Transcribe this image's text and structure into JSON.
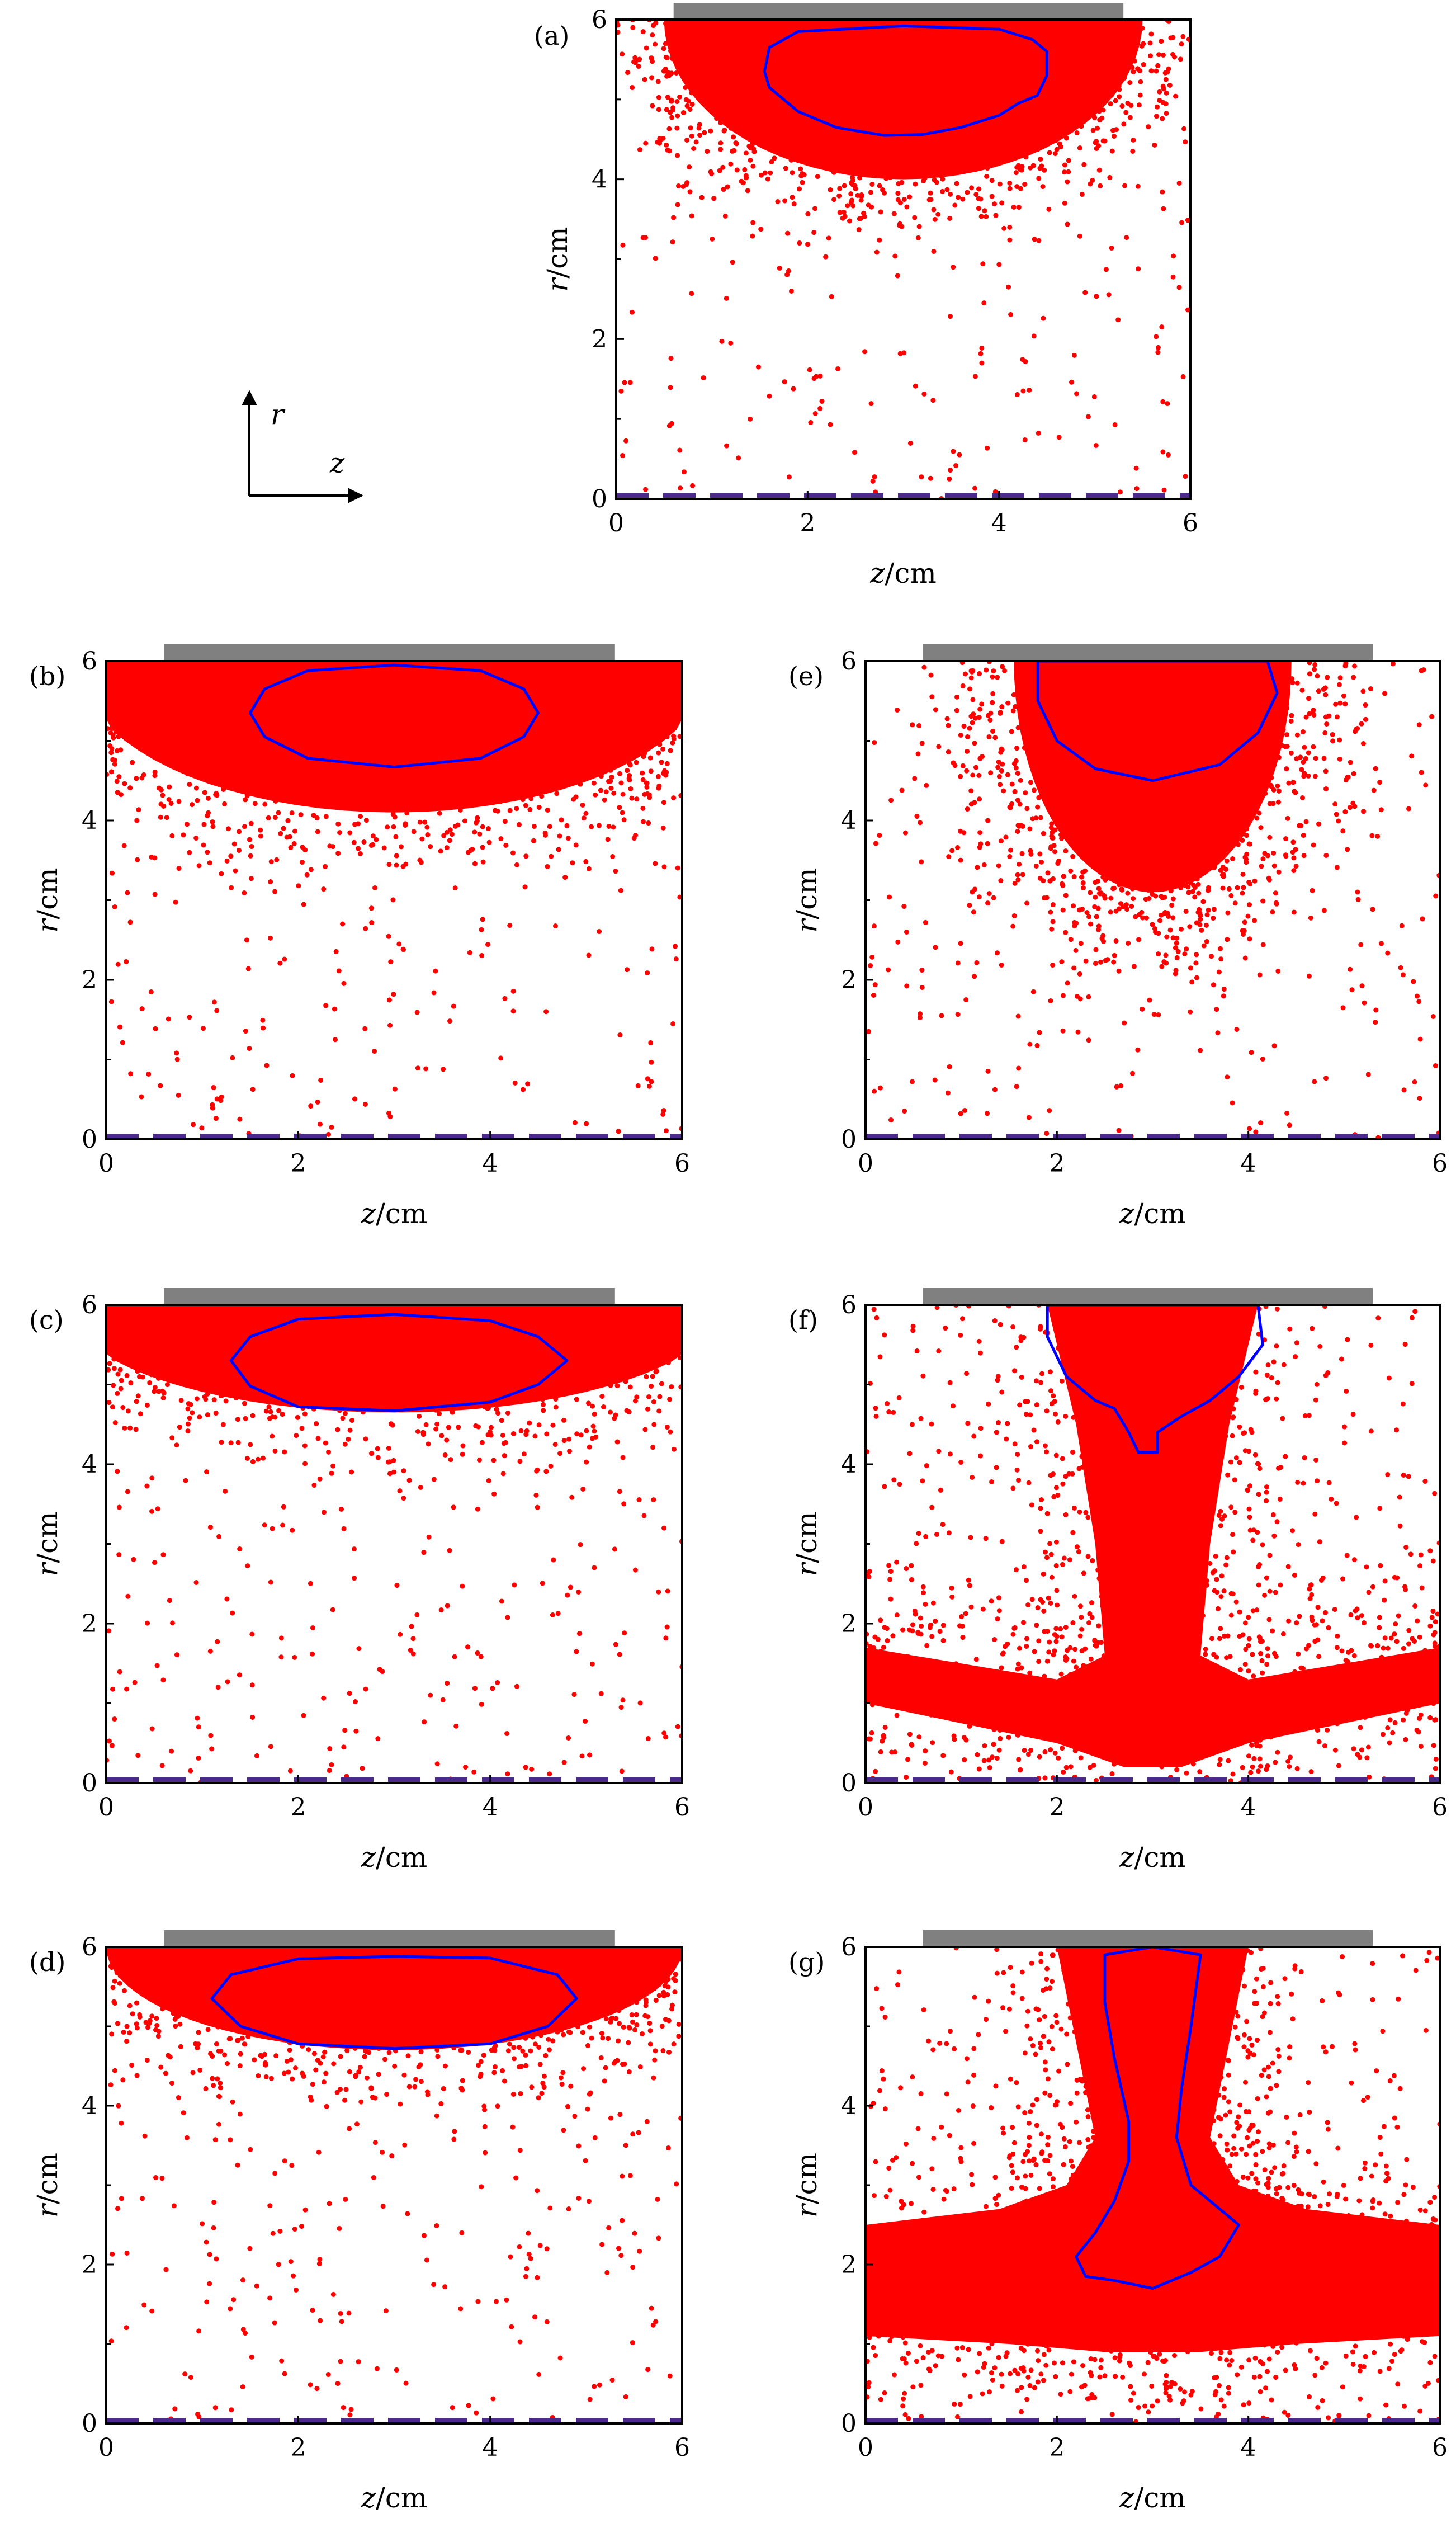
{
  "colors": {
    "points": "#ff0000",
    "contour": "#0000ff",
    "electrode": "#808080",
    "axis_line": "#4b2a8c",
    "frame": "#000000"
  },
  "coord_diagram": {
    "vertical_label": "r",
    "horizontal_label": "z"
  },
  "chart_data": [
    {
      "panel": "(a)",
      "type": "scatter",
      "xlabel_var": "z",
      "xlabel_unit": "/cm",
      "ylabel_var": "r",
      "ylabel_unit": "/cm",
      "xlim": [
        0,
        6
      ],
      "ylim": [
        0,
        6
      ],
      "xticks": [
        "0",
        "2",
        "4",
        "6"
      ],
      "yticks": [
        "0",
        "2",
        "4",
        "6"
      ],
      "electrode_z": [
        0.6,
        5.3
      ],
      "contour": [
        [
          1.55,
          5.35
        ],
        [
          1.6,
          5.65
        ],
        [
          1.9,
          5.85
        ],
        [
          3,
          5.92
        ],
        [
          4,
          5.88
        ],
        [
          4.35,
          5.75
        ],
        [
          4.5,
          5.6
        ],
        [
          4.5,
          5.3
        ],
        [
          4.4,
          5.05
        ],
        [
          4.2,
          4.95
        ],
        [
          4.0,
          4.8
        ],
        [
          3.6,
          4.65
        ],
        [
          3.2,
          4.56
        ],
        [
          2.8,
          4.55
        ],
        [
          2.3,
          4.65
        ],
        [
          1.9,
          4.85
        ],
        [
          1.6,
          5.15
        ]
      ]
    },
    {
      "panel": "(b)",
      "type": "scatter",
      "xlabel_var": "z",
      "xlabel_unit": "/cm",
      "ylabel_var": "r",
      "ylabel_unit": "/cm",
      "xlim": [
        0,
        6
      ],
      "ylim": [
        0,
        6
      ],
      "xticks": [
        "0",
        "2",
        "4",
        "6"
      ],
      "yticks": [
        "0",
        "2",
        "4",
        "6"
      ],
      "electrode_z": [
        0.6,
        5.3
      ],
      "contour": [
        [
          1.5,
          5.35
        ],
        [
          1.65,
          5.65
        ],
        [
          2.1,
          5.88
        ],
        [
          3,
          5.95
        ],
        [
          3.9,
          5.88
        ],
        [
          4.35,
          5.65
        ],
        [
          4.5,
          5.35
        ],
        [
          4.35,
          5.05
        ],
        [
          3.9,
          4.78
        ],
        [
          3,
          4.67
        ],
        [
          2.1,
          4.78
        ],
        [
          1.65,
          5.05
        ]
      ]
    },
    {
      "panel": "(c)",
      "type": "scatter",
      "xlabel_var": "z",
      "xlabel_unit": "/cm",
      "ylabel_var": "r",
      "ylabel_unit": "/cm",
      "xlim": [
        0,
        6
      ],
      "ylim": [
        0,
        6
      ],
      "xticks": [
        "0",
        "2",
        "4",
        "6"
      ],
      "yticks": [
        "0",
        "2",
        "4",
        "6"
      ],
      "electrode_z": [
        0.6,
        5.3
      ],
      "contour": [
        [
          1.3,
          5.3
        ],
        [
          1.5,
          5.6
        ],
        [
          2,
          5.82
        ],
        [
          3,
          5.88
        ],
        [
          4,
          5.8
        ],
        [
          4.5,
          5.6
        ],
        [
          4.8,
          5.3
        ],
        [
          4.5,
          5.0
        ],
        [
          4,
          4.78
        ],
        [
          3,
          4.67
        ],
        [
          2,
          4.72
        ],
        [
          1.5,
          4.98
        ]
      ]
    },
    {
      "panel": "(d)",
      "type": "scatter",
      "xlabel_var": "z",
      "xlabel_unit": "/cm",
      "ylabel_var": "r",
      "ylabel_unit": "/cm",
      "xlim": [
        0,
        6
      ],
      "ylim": [
        0,
        6
      ],
      "xticks": [
        "0",
        "2",
        "4",
        "6"
      ],
      "yticks": [
        "0",
        "2",
        "4",
        "6"
      ],
      "electrode_z": [
        0.6,
        5.3
      ],
      "contour": [
        [
          1.1,
          5.35
        ],
        [
          1.3,
          5.65
        ],
        [
          2,
          5.85
        ],
        [
          3,
          5.88
        ],
        [
          4,
          5.86
        ],
        [
          4.7,
          5.65
        ],
        [
          4.9,
          5.35
        ],
        [
          4.6,
          5.0
        ],
        [
          4,
          4.78
        ],
        [
          3,
          4.72
        ],
        [
          2,
          4.78
        ],
        [
          1.4,
          5.0
        ]
      ]
    },
    {
      "panel": "(e)",
      "type": "scatter",
      "xlabel_var": "z",
      "xlabel_unit": "/cm",
      "ylabel_var": "r",
      "ylabel_unit": "/cm",
      "xlim": [
        0,
        6
      ],
      "ylim": [
        0,
        6
      ],
      "xticks": [
        "0",
        "2",
        "4",
        "6"
      ],
      "yticks": [
        "0",
        "2",
        "4",
        "6"
      ],
      "electrode_z": [
        0.6,
        5.3
      ],
      "contour": [
        [
          1.8,
          6
        ],
        [
          4.2,
          6
        ],
        [
          4.3,
          5.6
        ],
        [
          4.1,
          5.1
        ],
        [
          3.7,
          4.7
        ],
        [
          3,
          4.5
        ],
        [
          2.4,
          4.65
        ],
        [
          2,
          5.0
        ],
        [
          1.8,
          5.5
        ]
      ]
    },
    {
      "panel": "(f)",
      "type": "scatter",
      "xlabel_var": "z",
      "xlabel_unit": "/cm",
      "ylabel_var": "r",
      "ylabel_unit": "/cm",
      "xlim": [
        0,
        6
      ],
      "ylim": [
        0,
        6
      ],
      "xticks": [
        "0",
        "2",
        "4",
        "6"
      ],
      "yticks": [
        "0",
        "2",
        "4",
        "6"
      ],
      "electrode_z": [
        0.6,
        5.3
      ],
      "contour": [
        [
          1.9,
          6
        ],
        [
          4.1,
          6
        ],
        [
          4.15,
          5.5
        ],
        [
          3.9,
          5.1
        ],
        [
          3.6,
          4.8
        ],
        [
          3.3,
          4.6
        ],
        [
          3.05,
          4.4
        ],
        [
          3.05,
          4.15
        ],
        [
          2.85,
          4.15
        ],
        [
          2.75,
          4.4
        ],
        [
          2.6,
          4.7
        ],
        [
          2.4,
          4.8
        ],
        [
          2.1,
          5.1
        ],
        [
          1.9,
          5.6
        ]
      ]
    },
    {
      "panel": "(g)",
      "type": "scatter",
      "xlabel_var": "z",
      "xlabel_unit": "/cm",
      "ylabel_var": "r",
      "ylabel_unit": "/cm",
      "xlim": [
        0,
        6
      ],
      "ylim": [
        0,
        6
      ],
      "xticks": [
        "0",
        "2",
        "4",
        "6"
      ],
      "yticks": [
        "0",
        "2",
        "4",
        "6"
      ],
      "electrode_z": [
        0.6,
        5.3
      ],
      "contour": [
        [
          2.5,
          5.9
        ],
        [
          3,
          6
        ],
        [
          3.5,
          5.9
        ],
        [
          3.4,
          5.0
        ],
        [
          3.3,
          4.2
        ],
        [
          3.25,
          3.6
        ],
        [
          3.4,
          3.0
        ],
        [
          3.7,
          2.7
        ],
        [
          3.9,
          2.5
        ],
        [
          3.7,
          2.1
        ],
        [
          3.4,
          1.9
        ],
        [
          3,
          1.7
        ],
        [
          2.6,
          1.8
        ],
        [
          2.3,
          1.85
        ],
        [
          2.2,
          2.1
        ],
        [
          2.4,
          2.4
        ],
        [
          2.6,
          2.8
        ],
        [
          2.75,
          3.3
        ],
        [
          2.75,
          3.8
        ],
        [
          2.6,
          4.6
        ],
        [
          2.5,
          5.3
        ]
      ]
    }
  ]
}
